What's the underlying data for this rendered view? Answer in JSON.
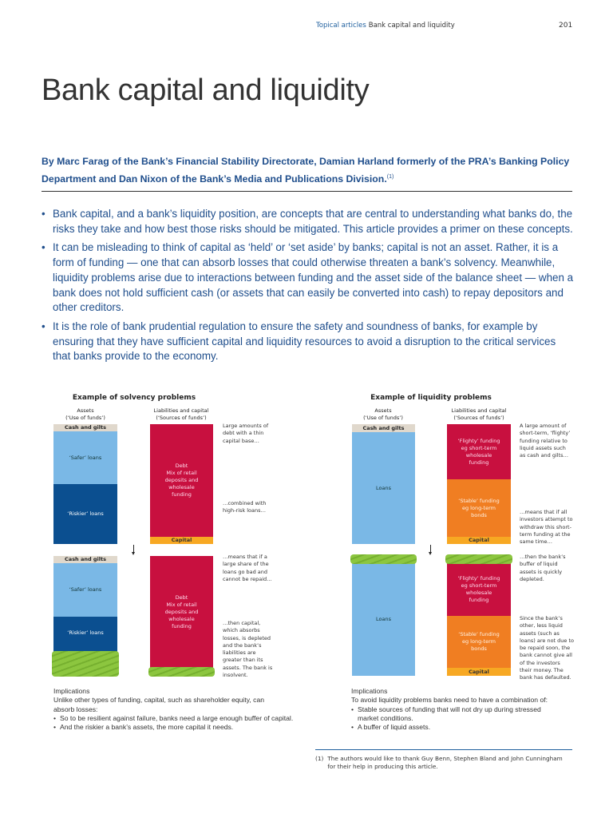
{
  "header": {
    "section": "Topical articles",
    "title": "Bank capital and liquidity",
    "page_number": "201"
  },
  "article": {
    "title": "Bank capital and liquidity",
    "byline": "By Marc Farag of the Bank’s Financial Stability Directorate, Damian Harland formerly of the PRA’s Banking Policy Department and Dan Nixon of the Bank’s Media and Publications Division.",
    "byline_note": "(1)",
    "bullets": [
      "Bank capital, and a bank’s liquidity position, are concepts that are central to understanding what banks do, the risks they take and how best those risks should be mitigated.  This article provides a primer on these concepts.",
      "It can be misleading to think of capital as ‘held’ or ‘set aside’ by banks;  capital is not an asset.  Rather, it is a form of funding — one that can absorb losses that could otherwise threaten a bank’s solvency. Meanwhile, liquidity problems arise due to interactions between funding and the asset side of the balance sheet — when a bank does not hold sufficient cash (or assets that can easily be converted into cash) to repay depositors and other creditors.",
      "It is the role of bank prudential regulation to ensure the safety and soundness of banks, for example by ensuring that they have sufficient capital and liquidity resources to avoid a disruption to the critical services that banks provide to the economy."
    ]
  },
  "labels": {
    "assets": "Assets",
    "assets_sub": "(‘Use of funds’)",
    "liab": "Liabilities and capital",
    "liab_sub": "(‘Sources of funds’)",
    "cash": "Cash and gilts",
    "safer": "‘Safer’ loans",
    "riskier": "‘Riskier’ loans",
    "debt": "Debt\nMix of retail deposits and wholesale funding",
    "capital": "Capital",
    "loans": "Loans",
    "flighty": "‘Flighty’ funding eg short-term wholesale funding",
    "stable": "‘Stable’ funding eg long-term bonds"
  },
  "solvency": {
    "title": "Example of solvency problems",
    "notes": [
      "Large amounts of debt with a thin capital base…",
      "…combined with high-risk loans…",
      "…means that if a large share of the loans go bad and cannot be repaid…",
      "…then capital, which absorbs losses, is depleted and the bank’s liabilities are greater than its assets.  The bank is insolvent."
    ],
    "implications_title": "Implications",
    "implications_text": "Unlike other types of funding, capital, such as shareholder equity, can absorb losses:",
    "implications_bullets": [
      "So to be resilient against failure, banks need a large enough buffer of capital.",
      "And the riskier a bank’s assets, the more capital it needs."
    ]
  },
  "liquidity": {
    "title": "Example of liquidity problems",
    "notes": [
      "A large amount of short-term, ‘flighty’ funding relative to liquid assets such as cash and gilts…",
      "…means that if all investors attempt to withdraw this short-term funding at the same time…",
      "…then the bank’s buffer of liquid assets is quickly depleted.",
      "Since the bank’s other, less liquid assets (such as loans) are not due to be repaid soon, the bank cannot give all of the investors their money.  The bank has defaulted."
    ],
    "implications_title": "Implications",
    "implications_text": "To avoid liquidity problems banks need to have a combination of:",
    "implications_bullets": [
      "Stable sources of funding that will not dry up during stressed market conditions.",
      "A buffer of liquid assets."
    ]
  },
  "footnote": {
    "marker": "(1)",
    "text": "The authors would like to thank Guy Benn, Stephen Bland and John Cunningham for their help in producing this article."
  },
  "colors": {
    "text_blue": "#1f4e8c",
    "cash": "#e0d8cc",
    "safer_loans": "#7ab8e6",
    "riskier_loans": "#0b4f90",
    "debt": "#c8103f",
    "stable": "#f07e22",
    "capital": "#f7a823",
    "losses": "#8cc63f"
  }
}
